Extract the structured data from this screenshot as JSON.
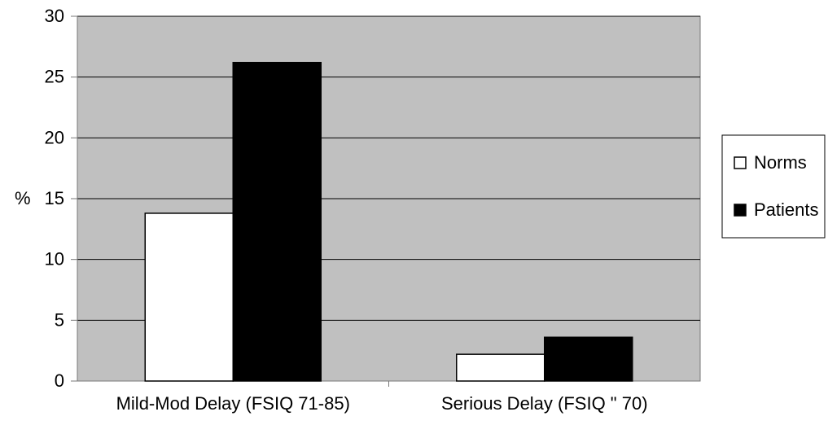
{
  "chart_data": {
    "type": "bar",
    "categories": [
      "Mild-Mod Delay (FSIQ 71-85)",
      "Serious Delay (FSIQ \" 70)"
    ],
    "series": [
      {
        "name": "Norms",
        "values": [
          13.8,
          2.2
        ],
        "color": "#ffffff"
      },
      {
        "name": "Patients",
        "values": [
          26.2,
          3.6
        ],
        "color": "#000000"
      }
    ],
    "title": "",
    "xlabel": "",
    "ylabel": "%",
    "ylim": [
      0,
      30
    ],
    "yticks": [
      0,
      5,
      10,
      15,
      20,
      25,
      30
    ],
    "grid": true,
    "legend": "right",
    "plot_background": "#c0c0c0",
    "gridline_color": "#000000"
  }
}
